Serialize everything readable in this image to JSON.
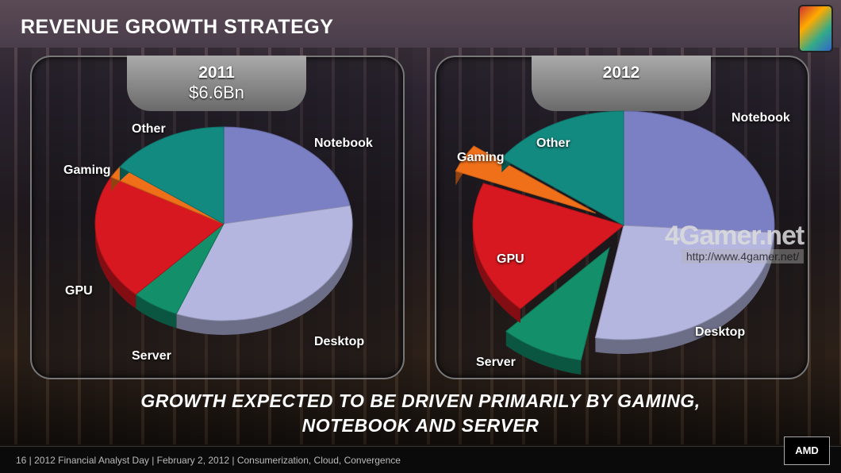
{
  "title": "REVENUE GROWTH STRATEGY",
  "headline": [
    "GROWTH  EXPECTED TO BE DRIVEN PRIMARILY BY GAMING,",
    "NOTEBOOK AND SERVER"
  ],
  "footer": "16  |  2012 Financial Analyst Day  |  February 2, 2012  |  Consumerization, Cloud, Convergence",
  "logo": "AMD",
  "watermark": {
    "logo": "4Gamer.net",
    "url": "http://www.4gamer.net/"
  },
  "chart_data": [
    {
      "type": "pie",
      "title": "2011",
      "subtitle": "$6.6Bn",
      "categories": [
        "Notebook",
        "Desktop",
        "Server",
        "GPU",
        "Gaming",
        "Other"
      ],
      "values": [
        22,
        34,
        6,
        21,
        2,
        15
      ],
      "exploded": [
        false,
        false,
        false,
        false,
        false,
        false
      ]
    },
    {
      "type": "pie",
      "title": "2012",
      "subtitle": "",
      "categories": [
        "Notebook",
        "Desktop",
        "Server",
        "GPU",
        "Gaming",
        "Other"
      ],
      "values": [
        26,
        27,
        9,
        19,
        4,
        15
      ],
      "exploded": [
        false,
        false,
        true,
        false,
        true,
        false
      ]
    }
  ],
  "colors": {
    "Notebook": "#7b7fc4",
    "Desktop": "#b4b6e0",
    "Server": "#13906a",
    "GPU": "#d81820",
    "Gaming": "#f0701a",
    "Other": "#138a80"
  }
}
